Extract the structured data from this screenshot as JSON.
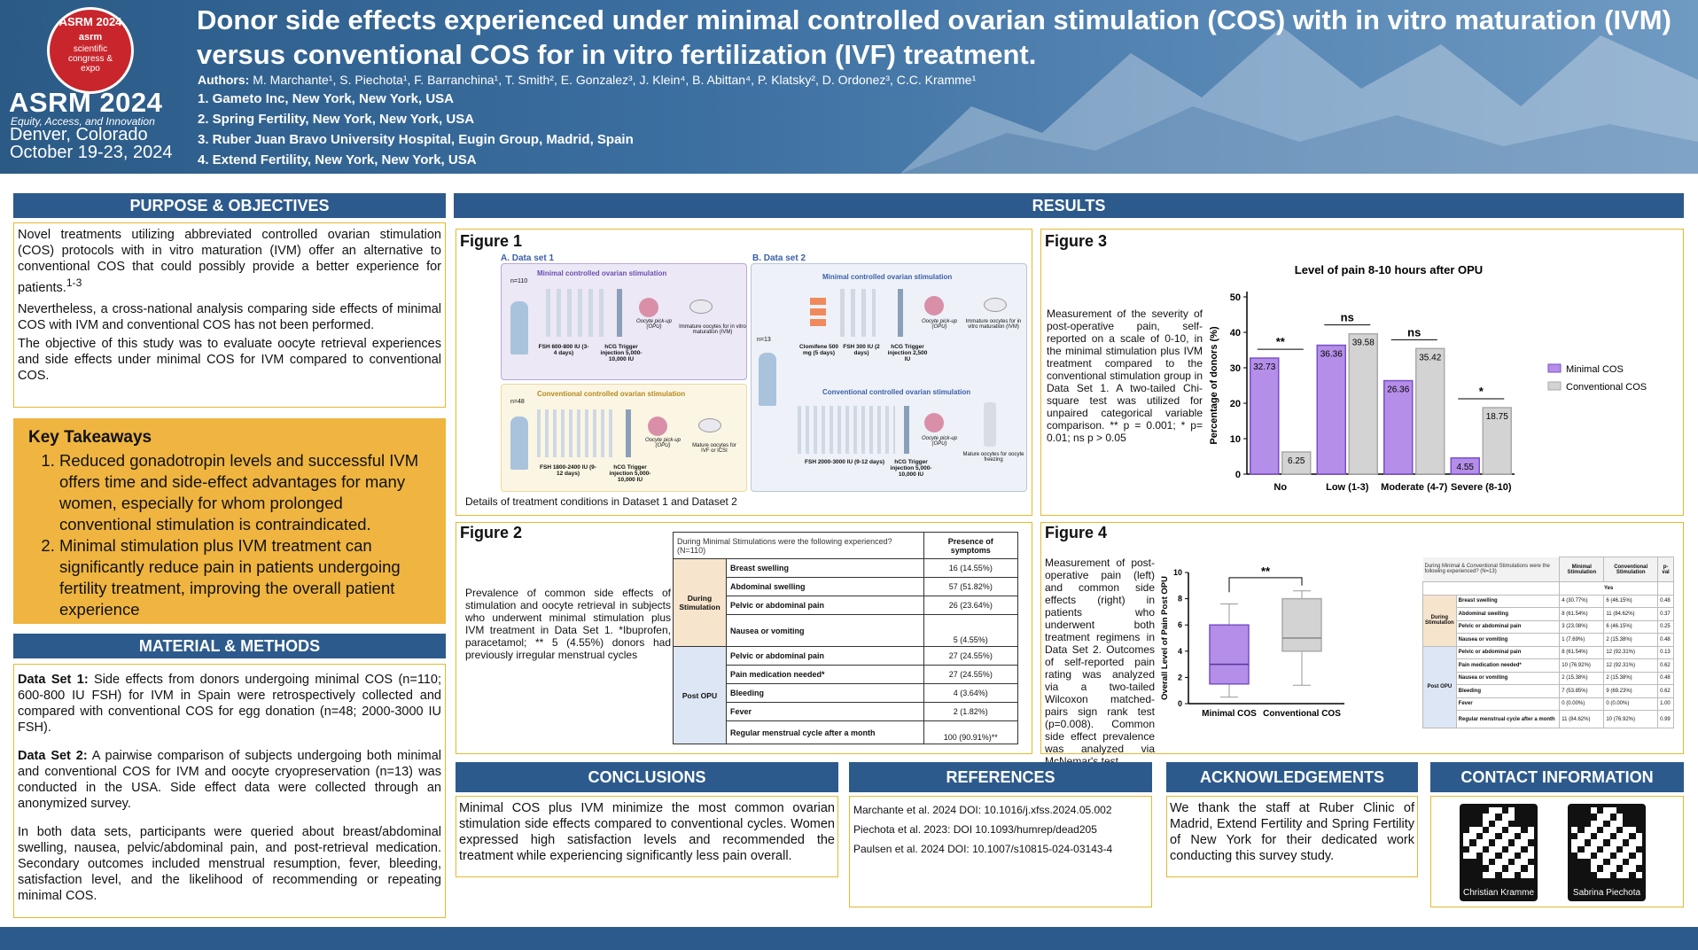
{
  "header": {
    "logo_year": "ASRM 2024",
    "logo_text": "scientific congress & expo",
    "logo_brand": "asrm",
    "conf_name": "ASRM 2024",
    "tagline": "Equity, Access, and Innovation",
    "city": "Denver, Colorado",
    "dates": "October 19-23, 2024",
    "title": "Donor side effects experienced under minimal controlled ovarian stimulation (COS) with in vitro maturation (IVM) versus conventional COS for in vitro fertilization (IVF) treatment.",
    "authors_label": "Authors:",
    "authors": "M. Marchante¹, S. Piechota¹, F. Barranchina¹, T. Smith², E. Gonzalez³, J. Klein⁴, B. Abittan⁴, P. Klatsky², D. Ordonez³, C.C. Kramme¹",
    "affiliations": [
      "1. Gameto Inc, New York, New York, USA",
      "2. Spring Fertility, New York, New York, USA",
      "3. Ruber Juan Bravo University Hospital, Eugin Group, Madrid, Spain",
      "4. Extend Fertility, New York, New York, USA"
    ]
  },
  "purpose": {
    "heading": "PURPOSE & OBJECTIVES",
    "p1": "Novel treatments utilizing abbreviated controlled ovarian stimulation (COS) protocols with in vitro maturation (IVM) offer an alternative to conventional COS that could possibly provide a better experience for patients.",
    "p1_ref": "1-3",
    "p2": "Nevertheless, a cross-national analysis comparing side effects of minimal COS with IVM and conventional COS has not been performed.",
    "p3": "The objective of this study was to evaluate oocyte retrieval experiences and side effects under minimal COS for IVM compared to conventional COS."
  },
  "takeaways": {
    "heading": "Key Takeaways",
    "items": [
      "Reduced gonadotropin levels and successful IVM offers time and side-effect advantages for many women, especially for whom prolonged conventional stimulation is contraindicated.",
      "Minimal stimulation plus IVM treatment can significantly reduce pain in patients undergoing fertility treatment, improving the overall patient experience"
    ]
  },
  "methods": {
    "heading": "MATERIAL & METHODS",
    "ds1_label": "Data Set 1:",
    "ds1": " Side effects from donors undergoing minimal COS (n=110; 600-800 IU FSH) for IVM in Spain were retrospectively collected and compared with conventional COS for egg donation (n=48; 2000-3000 IU FSH).",
    "ds2_label": "Data Set 2:",
    "ds2": " A pairwise comparison of subjects undergoing both minimal and conventional COS for IVM and oocyte cryopreservation (n=13) was conducted in the USA. Side effect data were collected through an anonymized survey.",
    "p3": "In both data sets, participants were queried about breast/abdominal swelling, nausea, pelvic/abdominal pain, and post-retrieval medication. Secondary outcomes included menstrual resumption, fever, bleeding, satisfaction level, and the likelihood of recommending or repeating minimal COS."
  },
  "results": {
    "heading": "RESULTS"
  },
  "fig1": {
    "title": "Figure 1",
    "caption": "Details of treatment conditions in Dataset 1 and Dataset 2",
    "a_label": "A. Data set 1",
    "b_label": "B. Data set 2",
    "min_label": "Minimal controlled ovarian stimulation",
    "conv_label": "Conventional controlled ovarian stimulation",
    "n110": "n=110",
    "n48": "n=48",
    "n13": "n=13",
    "fsh1": "FSH 600-800 IU (3-4 days)",
    "hcg1": "hCG Trigger injection 5,000-10,000 IU",
    "opu": "Oocyte pick-up (OPU)",
    "imm": "Immature oocytes for in vitro maturation (IVM)",
    "fsh2": "FSH 1800-2400 IU (9-12 days)",
    "hcg2": "hCG Trigger injection 5,000-10,000 IU",
    "mature": "Mature oocytes for IVF or ICSI",
    "clom": "Clomifene 500 mg (5 days)",
    "fsh3": "FSH 300 IU (2 days)",
    "hcg3": "hCG Trigger injection 2,500 IU",
    "fsh4": "FSH 2000-3000 IU (9-12 days)",
    "hcg4": "hCG Trigger injection 5,000-10,000 IU",
    "freeze": "Mature oocytes for oocyte freezing"
  },
  "fig2": {
    "title": "Figure 2",
    "caption": "Prevalence of common side effects of stimulation and oocyte retrieval in subjects who underwent minimal stimulation plus IVM treatment in Data Set 1. *Ibuprofen, paracetamol; ** 5 (4.55%) donors had previously irregular menstrual cycles",
    "col1": "During Minimal Stimulations were the following experienced? (N=110)",
    "col2": "Presence of symptoms",
    "group1": "During Stimulation",
    "group2": "Post OPU",
    "rows": [
      [
        "Breast swelling",
        "16 (14.55%)"
      ],
      [
        "Abdominal swelling",
        "57 (51.82%)"
      ],
      [
        "Pelvic or abdominal pain",
        "26 (23.64%)"
      ],
      [
        "Nausea or vomiting",
        "5 (4.55%)"
      ],
      [
        "Pelvic or abdominal pain",
        "27 (24.55%)"
      ],
      [
        "Pain medication needed*",
        "27 (24.55%)"
      ],
      [
        "Bleeding",
        "4 (3.64%)"
      ],
      [
        "Fever",
        "2 (1.82%)"
      ],
      [
        "Regular menstrual cycle after a month",
        "100 (90.91%)**"
      ]
    ]
  },
  "fig3": {
    "title": "Figure 3",
    "caption": "Measurement of the severity of post-operative pain, self-reported on a scale of 0-10, in the minimal stimulation plus IVM treatment compared to the conventional stimulation group in Data Set 1. A two-tailed Chi-square test was utilized for unpaired categorical variable comparison. ** p = 0.001; * p= 0.01; ns p > 0.05",
    "sig": [
      "**",
      "ns",
      "ns",
      "*"
    ]
  },
  "fig4": {
    "title": "Figure 4",
    "caption": "Measurement of post-operative pain (left) and common side effects (right) in patients who underwent both treatment regimens in Data Set 2. Outcomes of self-reported pain rating was analyzed via a two-tailed Wilcoxon matched-pairs sign rank test (p=0.008). Common side effect prevalence was analyzed via McNemar's test.",
    "sig": "**",
    "table_head": "During Minimal & Conventional Stimulations were the following experienced? (N=13)",
    "col_min": "Minimal Stimulation",
    "col_conv": "Conventional Stimulation",
    "col_p": "p-val",
    "yes": "Yes",
    "group1": "During Stimulation",
    "group2": "Post OPU",
    "rows": [
      [
        "Breast swelling",
        "4 (30.77%)",
        "6 (46.15%)",
        "0.48"
      ],
      [
        "Abdominal swelling",
        "8 (61.54%)",
        "11 (84.62%)",
        "0.37"
      ],
      [
        "Pelvic or abdominal pain",
        "3 (23.08%)",
        "6 (46.15%)",
        "0.25"
      ],
      [
        "Nausea or vomiting",
        "1 (7.69%)",
        "2 (15.38%)",
        "0.48"
      ],
      [
        "Pelvic or abdominal pain",
        "8 (61.54%)",
        "12 (92.31%)",
        "0.13"
      ],
      [
        "Pain medication needed*",
        "10 (76.92%)",
        "12 (92.31%)",
        "0.62"
      ],
      [
        "Nausea or vomiting",
        "2 (15.38%)",
        "2 (15.38%)",
        "0.48"
      ],
      [
        "Bleeding",
        "7 (53.85%)",
        "9 (69.23%)",
        "0.62"
      ],
      [
        "Fever",
        "0 (0.00%)",
        "0 (0.00%)",
        "1.00"
      ],
      [
        "Regular menstrual cycle after a month",
        "11 (84.62%)",
        "10 (76.92%)",
        "0.99"
      ]
    ]
  },
  "conclusions": {
    "heading": "CONCLUSIONS",
    "text": "Minimal COS plus IVM minimize the most common ovarian stimulation side effects compared to conventional cycles. Women expressed high satisfaction levels and recommended the treatment while experiencing significantly less pain overall."
  },
  "references": {
    "heading": "REFERENCES",
    "items": [
      "Marchante et al. 2024 DOI: 10.1016/j.xfss.2024.05.002",
      "Piechota et al. 2023: DOI 10.1093/humrep/dead205",
      "Paulsen et al. 2024 DOI: 10.1007/s10815-024-03143-4"
    ]
  },
  "acknowledgements": {
    "heading": "ACKNOWLEDGEMENTS",
    "text": "We thank the staff at Ruber Clinic of Madrid, Extend Fertility and Spring Fertility of New York for their dedicated work conducting this survey study."
  },
  "contact": {
    "heading": "CONTACT INFORMATION",
    "names": [
      "Christian Kramme",
      "Sabrina Piechota"
    ]
  },
  "colors": {
    "minimal": "#b48ee8",
    "conventional": "#d3d3d3",
    "section": "#2d5a8c",
    "takeaway": "#efb540"
  },
  "chart_data": [
    {
      "type": "bar",
      "title": "Level of pain 8-10 hours after OPU",
      "ylabel": "Percentage of donors (%)",
      "xlabel": "",
      "ylim": [
        0,
        50
      ],
      "yticks": [
        0,
        10,
        20,
        30,
        40,
        50
      ],
      "categories": [
        "No",
        "Low  (1-3)",
        "Moderate (4-7)",
        "Severe (8-10)"
      ],
      "series": [
        {
          "name": "Minimal COS",
          "values": [
            32.73,
            36.36,
            26.36,
            4.55
          ]
        },
        {
          "name": "Conventional COS",
          "values": [
            6.25,
            39.58,
            35.42,
            18.75
          ]
        }
      ],
      "legend": "right"
    },
    {
      "type": "box",
      "ylabel": "Overall Level of Pain Post OPU",
      "ylim": [
        0,
        10
      ],
      "yticks": [
        0,
        2,
        4,
        6,
        8,
        10
      ],
      "categories": [
        "Minimal COS",
        "Conventional COS"
      ],
      "boxes": [
        {
          "min": 0.5,
          "q1": 1.5,
          "median": 3,
          "q3": 6,
          "max": 7.6
        },
        {
          "min": 1.4,
          "q1": 4,
          "median": 5,
          "q3": 8,
          "max": 8.6
        }
      ]
    }
  ]
}
